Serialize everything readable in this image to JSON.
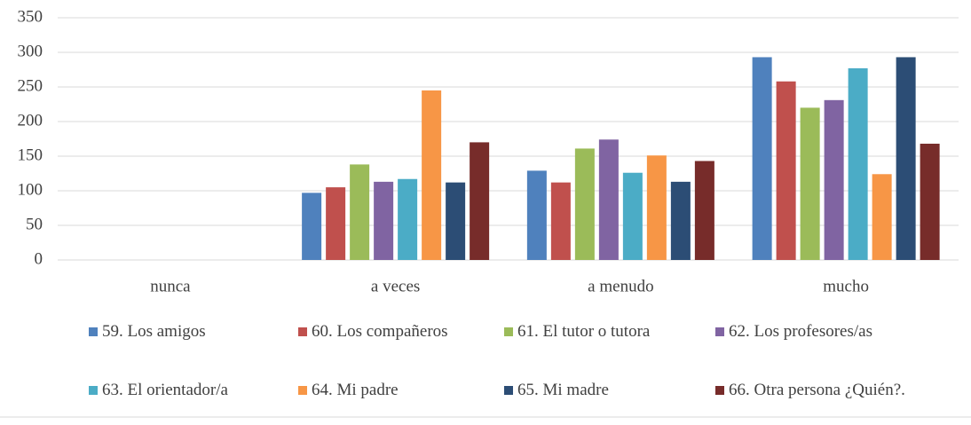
{
  "chart_data": {
    "type": "bar",
    "categories": [
      "nunca",
      "a veces",
      "a menudo",
      "mucho"
    ],
    "series": [
      {
        "name": "59. Los amigos",
        "color": "#4f81bd",
        "values": [
          0,
          97,
          129,
          293
        ]
      },
      {
        "name": "60. Los compañeros",
        "color": "#c0504d",
        "values": [
          0,
          105,
          112,
          258
        ]
      },
      {
        "name": "61. El tutor o tutora",
        "color": "#9bbb59",
        "values": [
          0,
          138,
          161,
          220
        ]
      },
      {
        "name": "62. Los profesores/as",
        "color": "#8064a2",
        "values": [
          0,
          113,
          174,
          231
        ]
      },
      {
        "name": "63. El orientador/a",
        "color": "#4bacc6",
        "values": [
          0,
          117,
          126,
          277
        ]
      },
      {
        "name": "64. Mi padre",
        "color": "#f79646",
        "values": [
          0,
          245,
          151,
          124
        ]
      },
      {
        "name": "65. Mi madre",
        "color": "#2c4d75",
        "values": [
          0,
          112,
          113,
          293
        ]
      },
      {
        "name": "66. Otra persona ¿Quién?.",
        "color": "#772c2a",
        "values": [
          0,
          170,
          143,
          168
        ]
      }
    ],
    "ylim": [
      0,
      350
    ],
    "yticks": [
      0,
      50,
      100,
      150,
      200,
      250,
      300,
      350
    ],
    "grid": true,
    "legend": "bottom"
  }
}
